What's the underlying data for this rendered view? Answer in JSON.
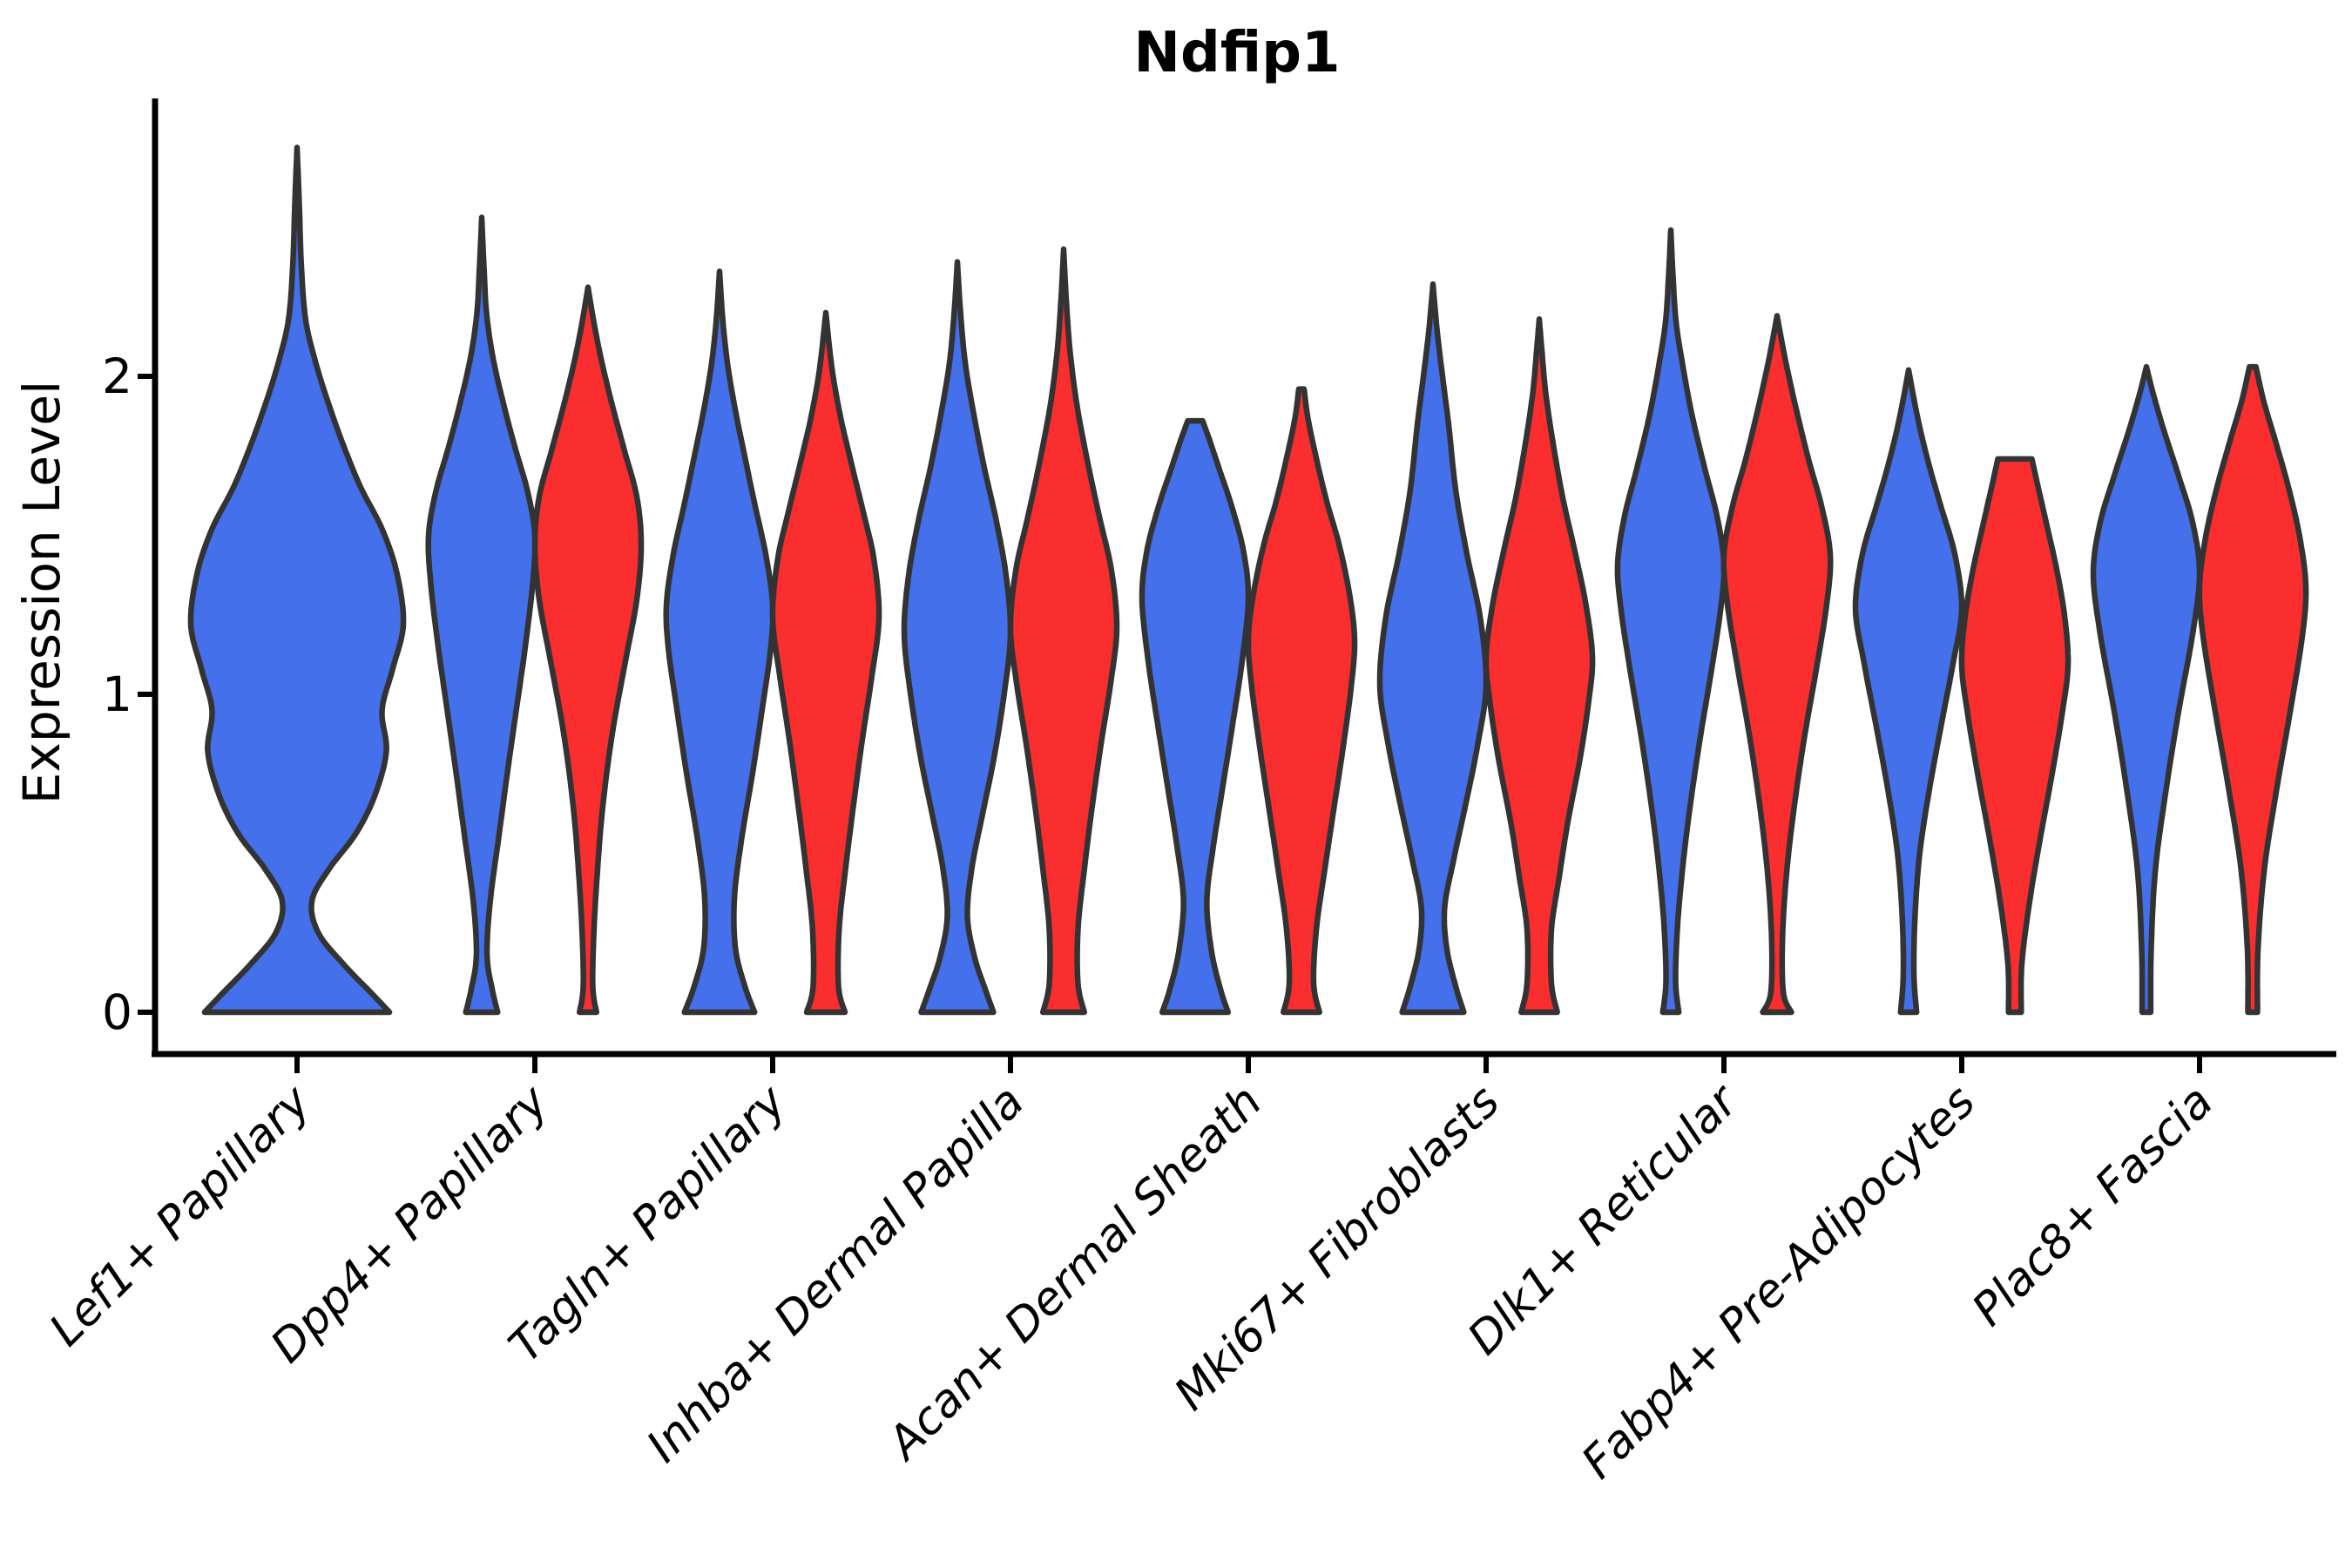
{
  "chart_data": {
    "type": "violin",
    "title": "Ndfip1",
    "xlabel": "",
    "ylabel": "Expression Level",
    "ylim": [
      0,
      2.85
    ],
    "yticks": [
      0,
      1,
      2
    ],
    "grid": false,
    "legend": null,
    "categories": [
      "Lef1+ Papillary",
      "Dpp4+ Papillary",
      "Tagln+ Papillary",
      "Inhba+ Dermal Papilla",
      "Acan+ Dermal Sheath",
      "Mki67+ Fibroblasts",
      "Dlk1+ Reticular",
      "Fabp4+ Pre-Adipocytes",
      "Plac8+ Fascia"
    ],
    "series_colors": {
      "blue": "#4470EB",
      "red": "#FA2E2E"
    },
    "outline_color": "#333333",
    "axis_color": "#000000",
    "violins": [
      {
        "category_index": 0,
        "group": "blue",
        "layout": "single",
        "max_value": 2.72,
        "profile": [
          [
            0,
            0.87
          ],
          [
            0.06,
            0.7
          ],
          [
            0.15,
            0.44
          ],
          [
            0.25,
            0.2
          ],
          [
            0.35,
            0.14
          ],
          [
            0.45,
            0.3
          ],
          [
            0.56,
            0.55
          ],
          [
            0.68,
            0.73
          ],
          [
            0.82,
            0.84
          ],
          [
            0.95,
            0.8
          ],
          [
            1.08,
            0.9
          ],
          [
            1.22,
            1.0
          ],
          [
            1.38,
            0.94
          ],
          [
            1.52,
            0.8
          ],
          [
            1.65,
            0.6
          ],
          [
            1.78,
            0.44
          ],
          [
            1.92,
            0.29
          ],
          [
            2.05,
            0.17
          ],
          [
            2.18,
            0.08
          ],
          [
            2.35,
            0.04
          ],
          [
            2.55,
            0.02
          ],
          [
            2.72,
            0
          ]
        ]
      },
      {
        "category_index": 1,
        "group": "blue",
        "layout": "left",
        "max_value": 2.5,
        "profile": [
          [
            0,
            0.3
          ],
          [
            0.07,
            0.2
          ],
          [
            0.18,
            0.1
          ],
          [
            0.35,
            0.16
          ],
          [
            0.55,
            0.32
          ],
          [
            0.75,
            0.48
          ],
          [
            0.95,
            0.65
          ],
          [
            1.15,
            0.82
          ],
          [
            1.35,
            0.96
          ],
          [
            1.5,
            1.0
          ],
          [
            1.64,
            0.86
          ],
          [
            1.78,
            0.62
          ],
          [
            1.92,
            0.4
          ],
          [
            2.06,
            0.21
          ],
          [
            2.2,
            0.09
          ],
          [
            2.35,
            0.04
          ],
          [
            2.5,
            0
          ]
        ]
      },
      {
        "category_index": 1,
        "group": "red",
        "layout": "right",
        "max_value": 2.28,
        "profile": [
          [
            0,
            0.16
          ],
          [
            0.08,
            0.09
          ],
          [
            0.25,
            0.11
          ],
          [
            0.45,
            0.18
          ],
          [
            0.65,
            0.28
          ],
          [
            0.88,
            0.46
          ],
          [
            1.1,
            0.7
          ],
          [
            1.3,
            0.92
          ],
          [
            1.47,
            1.0
          ],
          [
            1.62,
            0.92
          ],
          [
            1.77,
            0.68
          ],
          [
            1.92,
            0.44
          ],
          [
            2.06,
            0.24
          ],
          [
            2.18,
            0.1
          ],
          [
            2.28,
            0
          ]
        ]
      },
      {
        "category_index": 2,
        "group": "blue",
        "layout": "left",
        "max_value": 2.33,
        "profile": [
          [
            0,
            0.66
          ],
          [
            0.08,
            0.48
          ],
          [
            0.2,
            0.3
          ],
          [
            0.36,
            0.28
          ],
          [
            0.55,
            0.42
          ],
          [
            0.75,
            0.62
          ],
          [
            0.95,
            0.8
          ],
          [
            1.14,
            0.96
          ],
          [
            1.28,
            1.0
          ],
          [
            1.44,
            0.87
          ],
          [
            1.6,
            0.66
          ],
          [
            1.76,
            0.46
          ],
          [
            1.9,
            0.29
          ],
          [
            2.04,
            0.15
          ],
          [
            2.18,
            0.06
          ],
          [
            2.33,
            0
          ]
        ]
      },
      {
        "category_index": 2,
        "group": "red",
        "layout": "right",
        "max_value": 2.2,
        "profile": [
          [
            0,
            0.36
          ],
          [
            0.08,
            0.24
          ],
          [
            0.26,
            0.25
          ],
          [
            0.45,
            0.37
          ],
          [
            0.65,
            0.52
          ],
          [
            0.85,
            0.68
          ],
          [
            1.05,
            0.86
          ],
          [
            1.24,
            1.0
          ],
          [
            1.42,
            0.91
          ],
          [
            1.57,
            0.71
          ],
          [
            1.72,
            0.49
          ],
          [
            1.87,
            0.28
          ],
          [
            2.02,
            0.12
          ],
          [
            2.2,
            0
          ]
        ]
      },
      {
        "category_index": 3,
        "group": "blue",
        "layout": "left",
        "max_value": 2.36,
        "profile": [
          [
            0,
            0.68
          ],
          [
            0.07,
            0.53
          ],
          [
            0.17,
            0.33
          ],
          [
            0.3,
            0.19
          ],
          [
            0.45,
            0.27
          ],
          [
            0.62,
            0.47
          ],
          [
            0.8,
            0.69
          ],
          [
            1.0,
            0.88
          ],
          [
            1.19,
            1.0
          ],
          [
            1.37,
            0.92
          ],
          [
            1.54,
            0.74
          ],
          [
            1.71,
            0.51
          ],
          [
            1.88,
            0.31
          ],
          [
            2.04,
            0.15
          ],
          [
            2.2,
            0.06
          ],
          [
            2.36,
            0
          ]
        ]
      },
      {
        "category_index": 3,
        "group": "red",
        "layout": "right",
        "max_value": 2.4,
        "profile": [
          [
            0,
            0.39
          ],
          [
            0.09,
            0.27
          ],
          [
            0.26,
            0.27
          ],
          [
            0.45,
            0.39
          ],
          [
            0.65,
            0.54
          ],
          [
            0.85,
            0.71
          ],
          [
            1.04,
            0.89
          ],
          [
            1.21,
            1.0
          ],
          [
            1.39,
            0.9
          ],
          [
            1.56,
            0.67
          ],
          [
            1.74,
            0.44
          ],
          [
            1.91,
            0.25
          ],
          [
            2.08,
            0.12
          ],
          [
            2.24,
            0.05
          ],
          [
            2.4,
            0
          ]
        ]
      },
      {
        "category_index": 4,
        "group": "blue",
        "layout": "left",
        "max_value": 1.86,
        "flat_top": true,
        "profile": [
          [
            0,
            0.62
          ],
          [
            0.07,
            0.48
          ],
          [
            0.19,
            0.31
          ],
          [
            0.35,
            0.22
          ],
          [
            0.52,
            0.34
          ],
          [
            0.7,
            0.51
          ],
          [
            0.9,
            0.7
          ],
          [
            1.1,
            0.88
          ],
          [
            1.3,
            1.0
          ],
          [
            1.45,
            0.91
          ],
          [
            1.59,
            0.69
          ],
          [
            1.71,
            0.45
          ],
          [
            1.8,
            0.27
          ],
          [
            1.86,
            0.14
          ]
        ]
      },
      {
        "category_index": 4,
        "group": "red",
        "layout": "right",
        "max_value": 1.96,
        "flat_top": true,
        "profile": [
          [
            0,
            0.34
          ],
          [
            0.09,
            0.23
          ],
          [
            0.26,
            0.28
          ],
          [
            0.45,
            0.44
          ],
          [
            0.64,
            0.61
          ],
          [
            0.84,
            0.79
          ],
          [
            1.03,
            0.94
          ],
          [
            1.17,
            1.0
          ],
          [
            1.31,
            0.91
          ],
          [
            1.47,
            0.71
          ],
          [
            1.61,
            0.47
          ],
          [
            1.75,
            0.27
          ],
          [
            1.87,
            0.12
          ],
          [
            1.96,
            0.05
          ]
        ]
      },
      {
        "category_index": 5,
        "group": "blue",
        "layout": "left",
        "max_value": 2.29,
        "profile": [
          [
            0,
            0.58
          ],
          [
            0.08,
            0.43
          ],
          [
            0.2,
            0.26
          ],
          [
            0.33,
            0.22
          ],
          [
            0.48,
            0.39
          ],
          [
            0.65,
            0.61
          ],
          [
            0.84,
            0.84
          ],
          [
            1.03,
            1.0
          ],
          [
            1.24,
            0.89
          ],
          [
            1.44,
            0.64
          ],
          [
            1.64,
            0.43
          ],
          [
            1.84,
            0.3
          ],
          [
            2.0,
            0.18
          ],
          [
            2.14,
            0.08
          ],
          [
            2.29,
            0
          ]
        ]
      },
      {
        "category_index": 5,
        "group": "red",
        "layout": "right",
        "max_value": 2.18,
        "profile": [
          [
            0,
            0.34
          ],
          [
            0.09,
            0.23
          ],
          [
            0.26,
            0.23
          ],
          [
            0.42,
            0.37
          ],
          [
            0.6,
            0.54
          ],
          [
            0.8,
            0.77
          ],
          [
            0.99,
            0.94
          ],
          [
            1.12,
            1.0
          ],
          [
            1.28,
            0.88
          ],
          [
            1.45,
            0.67
          ],
          [
            1.62,
            0.44
          ],
          [
            1.8,
            0.25
          ],
          [
            1.95,
            0.12
          ],
          [
            2.08,
            0.05
          ],
          [
            2.18,
            0
          ]
        ]
      },
      {
        "category_index": 6,
        "group": "blue",
        "layout": "left",
        "max_value": 2.46,
        "profile": [
          [
            0,
            0.15
          ],
          [
            0.1,
            0.09
          ],
          [
            0.28,
            0.13
          ],
          [
            0.48,
            0.24
          ],
          [
            0.68,
            0.39
          ],
          [
            0.88,
            0.57
          ],
          [
            1.08,
            0.77
          ],
          [
            1.27,
            0.94
          ],
          [
            1.41,
            1.0
          ],
          [
            1.56,
            0.87
          ],
          [
            1.71,
            0.64
          ],
          [
            1.87,
            0.41
          ],
          [
            2.02,
            0.24
          ],
          [
            2.17,
            0.1
          ],
          [
            2.32,
            0.04
          ],
          [
            2.46,
            0
          ]
        ]
      },
      {
        "category_index": 6,
        "group": "red",
        "layout": "right",
        "max_value": 2.19,
        "profile": [
          [
            0,
            0.27
          ],
          [
            0.06,
            0.12
          ],
          [
            0.22,
            0.1
          ],
          [
            0.42,
            0.17
          ],
          [
            0.63,
            0.31
          ],
          [
            0.86,
            0.51
          ],
          [
            1.08,
            0.74
          ],
          [
            1.29,
            0.94
          ],
          [
            1.44,
            1.0
          ],
          [
            1.59,
            0.84
          ],
          [
            1.74,
            0.59
          ],
          [
            1.89,
            0.37
          ],
          [
            2.04,
            0.17
          ],
          [
            2.19,
            0
          ]
        ]
      },
      {
        "category_index": 7,
        "group": "blue",
        "layout": "left",
        "max_value": 2.02,
        "profile": [
          [
            0,
            0.15
          ],
          [
            0.12,
            0.1
          ],
          [
            0.3,
            0.12
          ],
          [
            0.5,
            0.21
          ],
          [
            0.7,
            0.39
          ],
          [
            0.9,
            0.61
          ],
          [
            1.1,
            0.84
          ],
          [
            1.27,
            1.0
          ],
          [
            1.44,
            0.87
          ],
          [
            1.59,
            0.61
          ],
          [
            1.73,
            0.37
          ],
          [
            1.87,
            0.17
          ],
          [
            2.02,
            0
          ]
        ]
      },
      {
        "category_index": 7,
        "group": "red",
        "layout": "right",
        "max_value": 1.74,
        "flat_top": true,
        "profile": [
          [
            0,
            0.12
          ],
          [
            0.15,
            0.13
          ],
          [
            0.34,
            0.27
          ],
          [
            0.54,
            0.47
          ],
          [
            0.74,
            0.69
          ],
          [
            0.94,
            0.89
          ],
          [
            1.09,
            1.0
          ],
          [
            1.24,
            0.94
          ],
          [
            1.39,
            0.79
          ],
          [
            1.54,
            0.59
          ],
          [
            1.65,
            0.44
          ],
          [
            1.74,
            0.32
          ]
        ]
      },
      {
        "category_index": 8,
        "group": "blue",
        "layout": "left",
        "max_value": 2.03,
        "profile": [
          [
            0,
            0.08
          ],
          [
            0.2,
            0.09
          ],
          [
            0.45,
            0.17
          ],
          [
            0.7,
            0.37
          ],
          [
            0.95,
            0.61
          ],
          [
            1.19,
            0.87
          ],
          [
            1.38,
            1.0
          ],
          [
            1.54,
            0.87
          ],
          [
            1.69,
            0.6
          ],
          [
            1.84,
            0.31
          ],
          [
            1.95,
            0.12
          ],
          [
            2.03,
            0
          ]
        ]
      },
      {
        "category_index": 8,
        "group": "red",
        "layout": "right",
        "max_value": 2.03,
        "flat_top": true,
        "profile": [
          [
            0,
            0.09
          ],
          [
            0.2,
            0.1
          ],
          [
            0.45,
            0.22
          ],
          [
            0.7,
            0.45
          ],
          [
            0.95,
            0.71
          ],
          [
            1.19,
            0.94
          ],
          [
            1.34,
            1.0
          ],
          [
            1.49,
            0.89
          ],
          [
            1.64,
            0.69
          ],
          [
            1.79,
            0.44
          ],
          [
            1.92,
            0.21
          ],
          [
            2.03,
            0.06
          ]
        ]
      }
    ]
  }
}
